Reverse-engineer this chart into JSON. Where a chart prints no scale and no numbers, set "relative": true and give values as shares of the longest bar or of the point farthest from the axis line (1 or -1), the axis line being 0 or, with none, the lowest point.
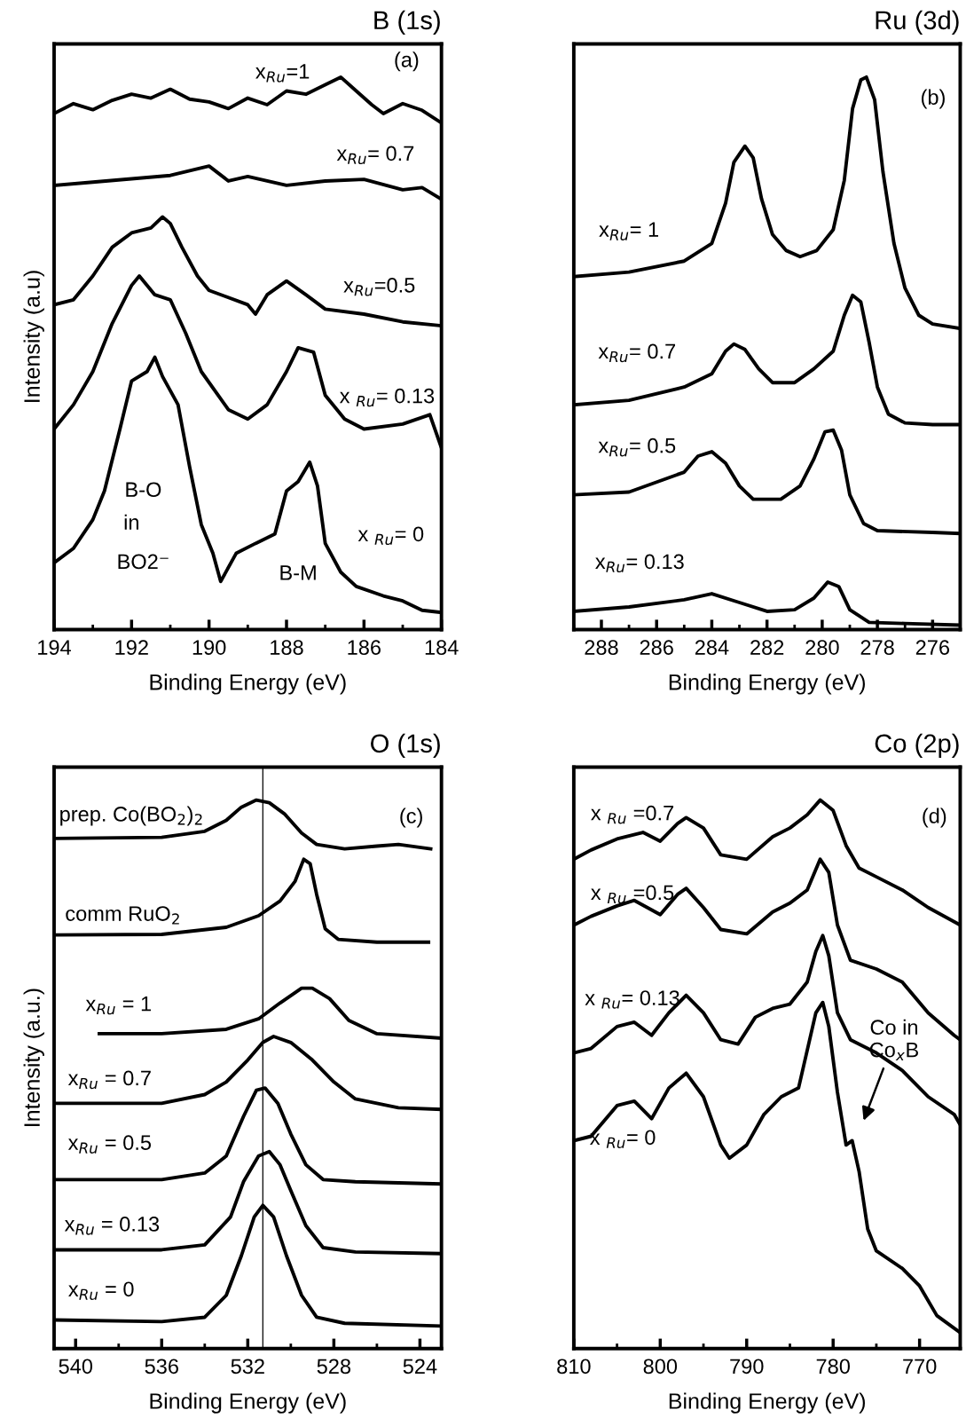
{
  "chart_data": [
    {
      "type": "line",
      "title": "B (1s)",
      "xlabel": "Binding Energy (eV)",
      "ylabel": "Intensity (a.u)",
      "relative": true,
      "tick_labels": "x",
      "xlim": [
        194,
        184
      ],
      "xticks": [
        194,
        192,
        190,
        188,
        186,
        184
      ],
      "series": [
        {
          "color": "#000000",
          "x": [
            194,
            193.5,
            193,
            192.5,
            192,
            191.5,
            191,
            190.5,
            190,
            189.5,
            189,
            188.5,
            188,
            187.5,
            187,
            186.6,
            186.2,
            185.8,
            185.5,
            185,
            184.5,
            184
          ],
          "values": [
            0.934,
            0.952,
            0.941,
            0.958,
            0.969,
            0.962,
            0.978,
            0.96,
            0.955,
            0.943,
            0.962,
            0.95,
            0.975,
            0.969,
            0.986,
            1.0,
            0.975,
            0.95,
            0.934,
            0.952,
            0.94,
            0.917
          ]
        },
        {
          "color": "#000000",
          "x": [
            194,
            193,
            192,
            191,
            190,
            189.5,
            189,
            188,
            187,
            186,
            185,
            184.5,
            184
          ],
          "values": [
            0.804,
            0.81,
            0.816,
            0.822,
            0.839,
            0.812,
            0.82,
            0.804,
            0.812,
            0.815,
            0.796,
            0.8,
            0.779
          ]
        },
        {
          "color": "#000000",
          "x": [
            194,
            193.5,
            193,
            192.5,
            192,
            191.5,
            191.2,
            191,
            190.7,
            190.3,
            190,
            189,
            188.8,
            188.5,
            188,
            187.5,
            187,
            186,
            185,
            184
          ],
          "values": [
            0.588,
            0.597,
            0.64,
            0.692,
            0.718,
            0.727,
            0.747,
            0.735,
            0.692,
            0.64,
            0.614,
            0.588,
            0.571,
            0.606,
            0.631,
            0.606,
            0.58,
            0.571,
            0.557,
            0.55
          ]
        },
        {
          "color": "#000000",
          "x": [
            194,
            193.5,
            193,
            192.5,
            192,
            191.8,
            191.4,
            191,
            190.6,
            190.2,
            189.5,
            189,
            188.5,
            188,
            187.7,
            187.3,
            187,
            186.5,
            186,
            185,
            184.3,
            184
          ],
          "values": [
            0.363,
            0.407,
            0.467,
            0.554,
            0.623,
            0.64,
            0.606,
            0.597,
            0.536,
            0.467,
            0.398,
            0.381,
            0.407,
            0.467,
            0.51,
            0.502,
            0.424,
            0.381,
            0.363,
            0.372,
            0.389,
            0.329
          ]
        },
        {
          "color": "#000000",
          "x": [
            194,
            193.5,
            193,
            192.7,
            192.3,
            192,
            191.6,
            191.4,
            191.2,
            190.8,
            190.5,
            190.2,
            189.9,
            189.7,
            189.3,
            188.8,
            188.3,
            188,
            187.7,
            187.4,
            187.2,
            187,
            186.6,
            186.2,
            185.5,
            185,
            184.5,
            184
          ],
          "values": [
            0.121,
            0.147,
            0.199,
            0.251,
            0.363,
            0.45,
            0.467,
            0.493,
            0.458,
            0.407,
            0.294,
            0.19,
            0.138,
            0.087,
            0.138,
            0.156,
            0.173,
            0.251,
            0.268,
            0.303,
            0.26,
            0.156,
            0.104,
            0.078,
            0.061,
            0.052,
            0.035,
            0.031
          ]
        }
      ],
      "annotations": [
        "(a)",
        "x$_{Ru}$=1",
        "x$_{Ru}$= 0.7",
        "x$_{Ru}$=0.5",
        "x $_{Ru}$= 0.13",
        "x $_{Ru}$= 0",
        "B-O",
        "in",
        "BO2⁻",
        "B-M"
      ]
    },
    {
      "type": "line",
      "title": "Ru (3d)",
      "xlabel": "Binding Energy (eV)",
      "relative": true,
      "tick_labels": "x",
      "xlim": [
        289,
        275
      ],
      "xticks": [
        288,
        286,
        284,
        282,
        280,
        278,
        276
      ],
      "series": [
        {
          "color": "#000000",
          "x": [
            289,
            287,
            285,
            284,
            283.5,
            283.2,
            282.8,
            282.5,
            282.2,
            281.8,
            281.3,
            280.8,
            280.2,
            279.6,
            279.2,
            278.9,
            278.6,
            278.4,
            278.1,
            277.8,
            277.4,
            277,
            276.5,
            276,
            275
          ],
          "values": [
            0.639,
            0.647,
            0.667,
            0.699,
            0.772,
            0.846,
            0.875,
            0.854,
            0.78,
            0.715,
            0.686,
            0.675,
            0.686,
            0.724,
            0.813,
            0.943,
            0.995,
            1.0,
            0.959,
            0.829,
            0.699,
            0.618,
            0.569,
            0.553,
            0.545
          ]
        },
        {
          "color": "#000000",
          "x": [
            289,
            287,
            285,
            284,
            283.5,
            283.2,
            282.8,
            282.3,
            281.8,
            281,
            280.3,
            279.6,
            279.2,
            278.9,
            278.6,
            278.3,
            278,
            277.6,
            277,
            276,
            275
          ],
          "values": [
            0.407,
            0.415,
            0.439,
            0.463,
            0.504,
            0.517,
            0.507,
            0.472,
            0.447,
            0.447,
            0.472,
            0.504,
            0.569,
            0.605,
            0.593,
            0.52,
            0.439,
            0.39,
            0.374,
            0.371,
            0.371
          ]
        },
        {
          "color": "#000000",
          "x": [
            289,
            287,
            285,
            284.5,
            284,
            283.5,
            283,
            282.5,
            281.5,
            280.8,
            280.3,
            279.9,
            279.6,
            279.3,
            279,
            278.5,
            278,
            276,
            275
          ],
          "values": [
            0.244,
            0.249,
            0.285,
            0.314,
            0.322,
            0.301,
            0.26,
            0.236,
            0.236,
            0.26,
            0.309,
            0.358,
            0.361,
            0.325,
            0.244,
            0.192,
            0.179,
            0.176,
            0.174
          ]
        },
        {
          "color": "#000000",
          "x": [
            289,
            287,
            285,
            284,
            283,
            282,
            281,
            280.3,
            279.8,
            279.4,
            279,
            278.3,
            277,
            275
          ],
          "values": [
            0.033,
            0.041,
            0.054,
            0.065,
            0.049,
            0.033,
            0.036,
            0.057,
            0.086,
            0.078,
            0.036,
            0.013,
            0.011,
            0.008
          ]
        }
      ],
      "annotations": [
        "(b)",
        "x$_{Ru}$= 1",
        "x$_{Ru}$= 0.7",
        "x$_{Ru}$= 0.5",
        "x$_{Ru}$= 0.13"
      ]
    },
    {
      "type": "line",
      "title": "O (1s)",
      "xlabel": "Binding Energy (eV)",
      "ylabel": "Intensity (a.u.)",
      "relative": true,
      "tick_labels": "x",
      "xlim": [
        541,
        523
      ],
      "xticks": [
        540,
        536,
        532,
        528,
        524
      ],
      "ref_lines": [
        {
          "axis": "x",
          "value": 531.3,
          "color": "#000000"
        }
      ],
      "series": [
        {
          "color": "#000000",
          "x": [
            541,
            536,
            534,
            533,
            532.3,
            531.6,
            531,
            530.3,
            529.5,
            528.8,
            527.5,
            526,
            525,
            523.5
          ],
          "values": [
            0.93,
            0.932,
            0.943,
            0.963,
            0.987,
            1.0,
            0.995,
            0.975,
            0.94,
            0.919,
            0.911,
            0.916,
            0.919,
            0.911
          ]
        },
        {
          "color": "#000000",
          "x": [
            541,
            536,
            533,
            531.5,
            530.5,
            529.8,
            529.4,
            529.1,
            528.8,
            528.4,
            527.8,
            526,
            523.6
          ],
          "values": [
            0.754,
            0.755,
            0.768,
            0.789,
            0.816,
            0.852,
            0.892,
            0.884,
            0.828,
            0.765,
            0.746,
            0.741,
            0.741
          ]
        },
        {
          "color": "#000000",
          "x": [
            538.9,
            536,
            533,
            531.5,
            530.5,
            529.5,
            529,
            528.2,
            527.3,
            526,
            523.05
          ],
          "values": [
            0.574,
            0.574,
            0.582,
            0.601,
            0.63,
            0.657,
            0.657,
            0.638,
            0.598,
            0.574,
            0.566
          ]
        },
        {
          "color": "#000000",
          "x": [
            541,
            536,
            534,
            533,
            532,
            531.3,
            530.8,
            530,
            529,
            528,
            527,
            525,
            523.05
          ],
          "values": [
            0.447,
            0.447,
            0.463,
            0.486,
            0.526,
            0.558,
            0.569,
            0.558,
            0.526,
            0.486,
            0.455,
            0.439,
            0.436
          ]
        },
        {
          "color": "#000000",
          "x": [
            541,
            536,
            534,
            533,
            532.2,
            531.6,
            531.2,
            530.6,
            530,
            529.3,
            528.5,
            527,
            523.05
          ],
          "values": [
            0.308,
            0.308,
            0.32,
            0.351,
            0.423,
            0.471,
            0.475,
            0.447,
            0.391,
            0.335,
            0.308,
            0.304,
            0.3
          ]
        },
        {
          "color": "#000000",
          "x": [
            541,
            536,
            534,
            532.8,
            532.2,
            531.5,
            531,
            530.5,
            530,
            529.3,
            528.5,
            527,
            523.05
          ],
          "values": [
            0.18,
            0.18,
            0.189,
            0.24,
            0.304,
            0.351,
            0.359,
            0.335,
            0.288,
            0.224,
            0.184,
            0.176,
            0.173
          ]
        },
        {
          "color": "#000000",
          "x": [
            541,
            536,
            534,
            533,
            532.3,
            531.7,
            531.3,
            530.8,
            530.2,
            529.5,
            528.8,
            527.5,
            523.05
          ],
          "values": [
            0.052,
            0.049,
            0.057,
            0.097,
            0.169,
            0.24,
            0.261,
            0.24,
            0.169,
            0.097,
            0.057,
            0.046,
            0.041
          ]
        }
      ],
      "annotations": [
        "(c)",
        "prep. Co(BO$_{2}$)$_{2}$",
        "comm RuO$_{2}$",
        "x$_{Ru}$ = 1",
        "x$_{Ru}$ = 0.7",
        "x$_{Ru}$ = 0.5",
        "x$_{Ru}$ = 0.13",
        "x$_{Ru}$ = 0"
      ]
    },
    {
      "type": "line",
      "title": "Co (2p)",
      "xlabel": "Binding Energy (eV)",
      "relative": true,
      "tick_labels": "x",
      "xlim": [
        810,
        765.3
      ],
      "xticks": [
        810,
        800,
        790,
        780,
        770
      ],
      "series": [
        {
          "color": "#000000",
          "x": [
            810,
            808,
            805,
            802,
            800,
            798,
            797,
            795,
            793,
            790,
            787,
            785,
            783,
            781.5,
            780,
            778.5,
            777,
            775,
            772,
            769,
            765.3
          ],
          "values": [
            0.892,
            0.909,
            0.929,
            0.941,
            0.925,
            0.957,
            0.968,
            0.949,
            0.9,
            0.892,
            0.933,
            0.949,
            0.973,
            1.0,
            0.981,
            0.917,
            0.876,
            0.86,
            0.836,
            0.804,
            0.772
          ]
        },
        {
          "color": "#000000",
          "x": [
            810,
            808,
            805,
            803,
            800,
            798,
            797,
            795,
            793,
            790,
            787,
            785,
            783,
            781.5,
            780.5,
            779.5,
            778,
            775,
            772,
            769,
            766,
            765.3
          ],
          "values": [
            0.772,
            0.788,
            0.807,
            0.817,
            0.791,
            0.828,
            0.839,
            0.804,
            0.764,
            0.756,
            0.796,
            0.812,
            0.836,
            0.892,
            0.868,
            0.772,
            0.708,
            0.692,
            0.668,
            0.612,
            0.571,
            0.563
          ]
        },
        {
          "color": "#000000",
          "x": [
            810,
            808,
            805,
            803,
            801,
            799,
            797,
            795,
            793,
            791,
            789,
            787,
            785,
            783,
            782,
            781.2,
            780.5,
            779.5,
            778,
            775,
            772,
            769,
            766,
            765.3
          ],
          "values": [
            0.539,
            0.547,
            0.587,
            0.595,
            0.571,
            0.612,
            0.644,
            0.612,
            0.563,
            0.555,
            0.604,
            0.62,
            0.628,
            0.668,
            0.724,
            0.753,
            0.716,
            0.612,
            0.563,
            0.539,
            0.507,
            0.459,
            0.427,
            0.408
          ]
        },
        {
          "color": "#000000",
          "x": [
            810,
            808,
            805,
            803,
            801,
            799,
            797,
            795,
            793,
            792,
            790,
            788,
            786,
            784,
            782,
            781.2,
            780.5,
            779.5,
            778.5,
            777.8,
            777,
            776,
            775,
            772,
            770,
            768,
            765.3
          ],
          "values": [
            0.379,
            0.387,
            0.443,
            0.451,
            0.419,
            0.475,
            0.502,
            0.459,
            0.371,
            0.347,
            0.371,
            0.427,
            0.459,
            0.475,
            0.612,
            0.631,
            0.587,
            0.467,
            0.371,
            0.379,
            0.323,
            0.218,
            0.178,
            0.146,
            0.114,
            0.06,
            0.029
          ]
        }
      ],
      "annotations": [
        "(d)",
        "x $_{Ru}$ =0.7",
        "x $_{Ru}$ =0.5",
        "x $_{Ru}$= 0.13",
        "x $_{Ru}$= 0",
        "Co in\nCo$_{x}$B"
      ]
    }
  ]
}
